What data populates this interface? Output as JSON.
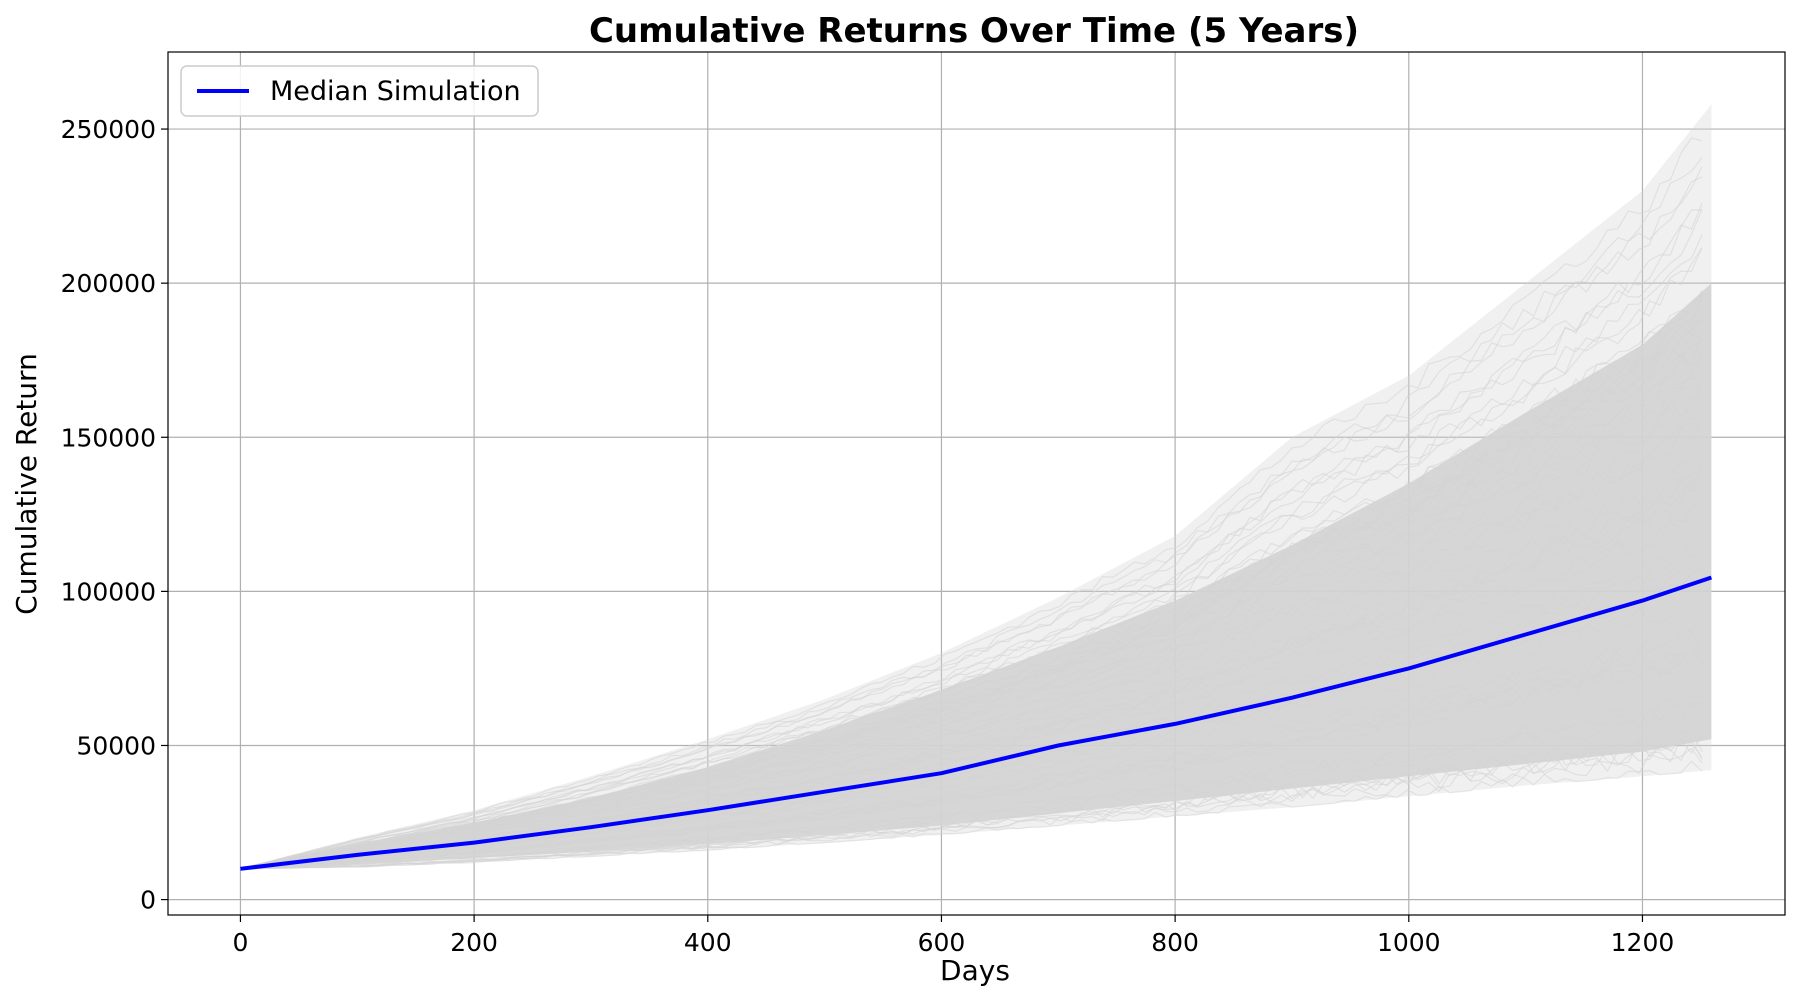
{
  "chart_data": {
    "type": "line",
    "title": "Cumulative Returns Over Time (5 Years)",
    "xlabel": "Days",
    "ylabel": "Cumulative Return",
    "xlim": [
      -62,
      1322
    ],
    "ylim": [
      -5000,
      275000
    ],
    "x_ticks": [
      0,
      200,
      400,
      600,
      800,
      1000,
      1200
    ],
    "y_ticks": [
      0,
      50000,
      100000,
      150000,
      200000,
      250000
    ],
    "grid": true,
    "legend": {
      "placement": "top-left",
      "entries": [
        "Median Simulation"
      ]
    },
    "series": [
      {
        "name": "Median Simulation",
        "color": "#0000ff",
        "x": [
          0,
          100,
          200,
          300,
          400,
          500,
          600,
          700,
          800,
          900,
          1000,
          1100,
          1200,
          1259
        ],
        "values": [
          10000,
          14500,
          18500,
          23500,
          29000,
          35000,
          41000,
          50000,
          57000,
          65500,
          75000,
          86000,
          97000,
          104500
        ]
      }
    ],
    "simulation_band": {
      "color": "#d3d3d3",
      "x": [
        0,
        100,
        200,
        300,
        400,
        500,
        600,
        700,
        800,
        900,
        1000,
        1100,
        1200,
        1259
      ],
      "lower": [
        10000,
        11500,
        13500,
        15500,
        18000,
        21000,
        24000,
        28000,
        32000,
        36000,
        40000,
        44000,
        48000,
        52000
      ],
      "upper": [
        10000,
        18000,
        25000,
        33000,
        43000,
        55000,
        68000,
        82000,
        97000,
        115000,
        135000,
        158000,
        180000,
        200000
      ],
      "outer_lower": [
        10000,
        10500,
        12000,
        14000,
        16000,
        18500,
        21000,
        24000,
        27000,
        30000,
        33500,
        37000,
        40000,
        42000
      ],
      "outer_upper": [
        10000,
        20000,
        29000,
        40000,
        52000,
        65000,
        80000,
        98000,
        118000,
        150000,
        170000,
        200000,
        230000,
        258000
      ]
    }
  }
}
